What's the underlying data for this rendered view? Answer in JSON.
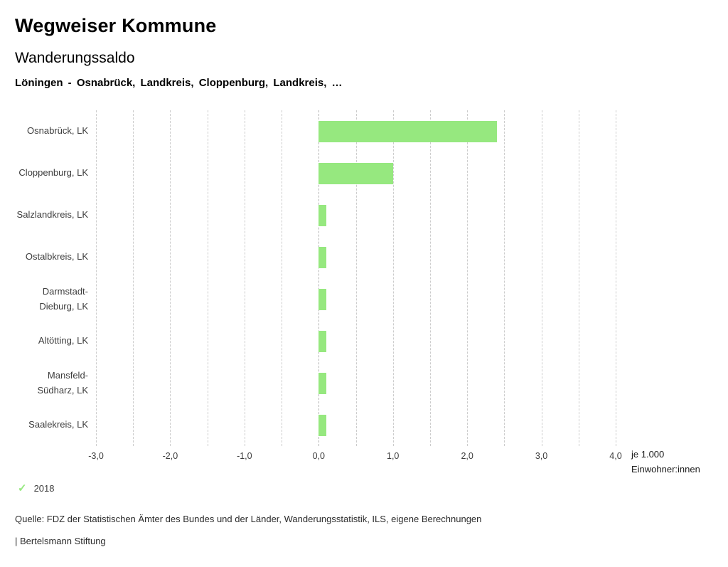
{
  "header": {
    "title": "Wegweiser Kommune"
  },
  "chart_data": {
    "type": "bar",
    "orientation": "horizontal",
    "title": "Wanderungssaldo",
    "subtitle": "Löningen - Osnabrück, Landkreis, Cloppenburg, Landkreis, …",
    "categories": [
      "Osnabrück, LK",
      "Cloppenburg, LK",
      "Salzlandkreis, LK",
      "Ostalbkreis, LK",
      "Darmstadt-Dieburg, LK",
      "Altötting, LK",
      "Mansfeld-Südharz, LK",
      "Saalekreis, LK"
    ],
    "series": [
      {
        "name": "2018",
        "values": [
          2.4,
          1.0,
          0.1,
          0.1,
          0.1,
          0.1,
          0.1,
          0.1
        ],
        "color": "#96e87f"
      }
    ],
    "xlim": [
      -3.0,
      4.0
    ],
    "gridline_step": 0.5,
    "x_tick_values": [
      -3,
      -2,
      -1,
      0,
      1,
      2,
      3,
      4
    ],
    "x_tick_labels": [
      "-3,0",
      "-2,0",
      "-1,0",
      "0,0",
      "1,0",
      "2,0",
      "3,0",
      "4,0"
    ],
    "x_unit_lines": [
      "je 1.000",
      "Einwohner:innen"
    ],
    "grid": true,
    "legend_position": "bottom-left"
  },
  "legend": {
    "check_icon": "✓"
  },
  "footer": {
    "source": "Quelle: FDZ der Statistischen Ämter des Bundes und der Länder, Wanderungsstatistik, ILS, eigene Berechnungen",
    "attribution": "| Bertelsmann Stiftung"
  }
}
